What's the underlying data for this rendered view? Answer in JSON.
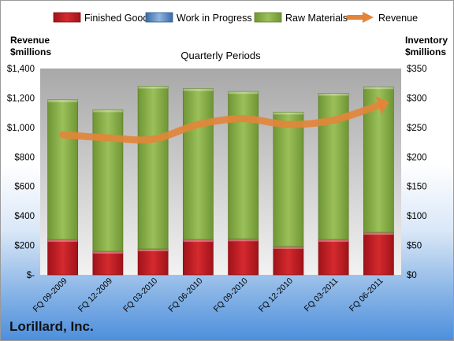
{
  "company": "Lorillard, Inc.",
  "chart_data": {
    "type": "bar",
    "stacked": true,
    "title": "Quarterly Periods",
    "ylabel_left": "Revenue $millions",
    "ylabel_right": "Inventory $millions",
    "categories": [
      "FQ 09-2009",
      "FQ 12-2009",
      "FQ 03-2010",
      "FQ 06-2010",
      "FQ 09-2010",
      "FQ 12-2010",
      "FQ 03-2011",
      "FQ 06-2011"
    ],
    "y_left_ticks": [
      "$-",
      "$200",
      "$400",
      "$600",
      "$800",
      "$1,000",
      "$1,200",
      "$1,400"
    ],
    "y_right_ticks": [
      "$0",
      "$50",
      "$100",
      "$150",
      "$200",
      "$250",
      "$300",
      "$350"
    ],
    "ylim_left": [
      0,
      1400
    ],
    "ylim_right": [
      0,
      350
    ],
    "legend_position": "top",
    "grid": false,
    "series": [
      {
        "name": "Finished Goods",
        "axis": "right",
        "kind": "bar",
        "color": "#c0191f",
        "values": [
          60,
          40,
          44,
          60,
          61,
          48,
          60,
          72
        ]
      },
      {
        "name": "Work in Progress",
        "axis": "right",
        "kind": "bar",
        "color": "#4f81bd",
        "values": [
          0,
          0,
          0,
          0,
          0,
          0,
          0,
          0
        ]
      },
      {
        "name": "Raw Materials",
        "axis": "right",
        "kind": "bar",
        "color": "#8db04a",
        "values": [
          237,
          240,
          276,
          256,
          250,
          228,
          248,
          247
        ]
      },
      {
        "name": "Revenue",
        "axis": "left",
        "kind": "line",
        "color": "#e2853a",
        "values": [
          950,
          930,
          920,
          1020,
          1060,
          1020,
          1050,
          1150
        ]
      }
    ]
  }
}
